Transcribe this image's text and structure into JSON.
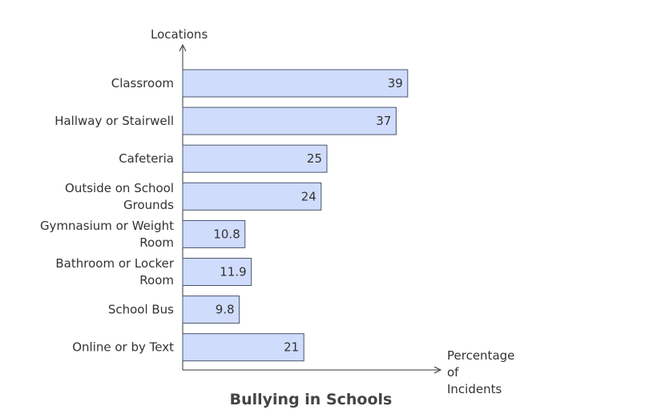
{
  "chart_data": {
    "type": "bar",
    "orientation": "horizontal",
    "title": "Bullying in Schools",
    "ylabel": "Locations",
    "xlabel": "Percentage of Incidents",
    "categories": [
      "Classroom",
      "Hallway or Stairwell",
      "Cafeteria",
      "Outside on School Grounds",
      "Gymnasium or Weight Room",
      "Bathroom or Locker Room",
      "School Bus",
      "Online or by Text"
    ],
    "values": [
      39,
      37,
      25,
      24,
      10.8,
      11.9,
      9.8,
      21
    ],
    "value_labels": [
      "39",
      "37",
      "25",
      "24",
      "10.8",
      "11.9",
      "9.8",
      "21"
    ],
    "category_label_lines": [
      [
        "Classroom"
      ],
      [
        "Hallway or Stairwell"
      ],
      [
        "Cafeteria"
      ],
      [
        "Outside on School",
        "Grounds"
      ],
      [
        "Gymnasium or Weight",
        "Room"
      ],
      [
        "Bathroom or Locker",
        "Room"
      ],
      [
        "School Bus"
      ],
      [
        "Online or by Text"
      ]
    ],
    "xlabel_lines": [
      "Percentage",
      "of",
      "Incidents"
    ],
    "grid": false,
    "legend": "none",
    "colors": {
      "bar_fill": "#d0dcfb",
      "bar_stroke": "#4a5570",
      "axis": "#333333",
      "text": "#333333"
    }
  }
}
